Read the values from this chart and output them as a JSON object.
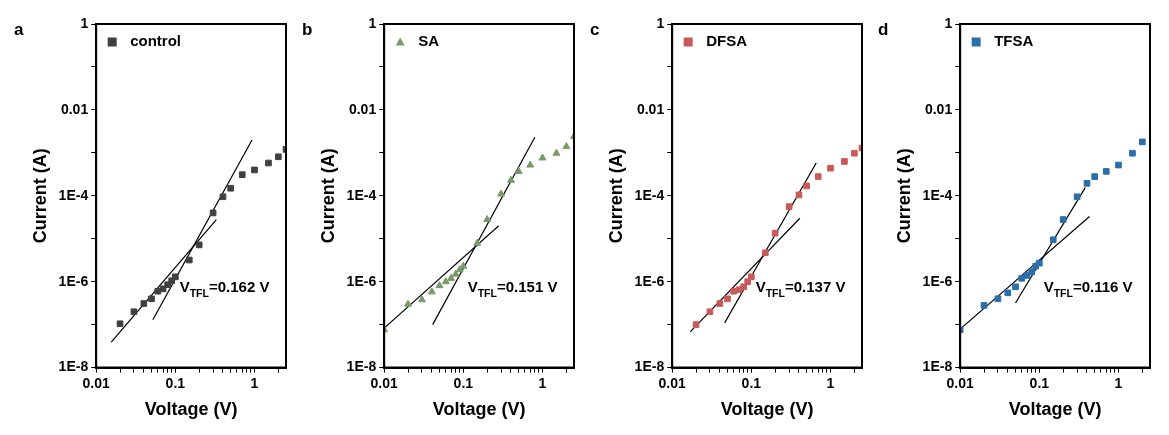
{
  "chart_data": [
    {
      "type": "scatter",
      "title": "a",
      "xlabel": "Voltage (V)",
      "ylabel": "Current (A)",
      "legend": "top left",
      "log": "xy",
      "xlim": [
        0.01,
        2.5
      ],
      "ylim": [
        1e-08,
        1
      ],
      "xticks": [
        0.01,
        {
          "value": 0.02,
          "label": null
        },
        {
          "value": 0.03,
          "label": null
        },
        {
          "value": 0.04,
          "label": null
        },
        {
          "value": 0.05,
          "label": null
        },
        {
          "value": 0.06,
          "label": null
        },
        {
          "value": 0.07,
          "label": null
        },
        {
          "value": 0.08,
          "label": null
        },
        {
          "value": 0.09,
          "label": null
        },
        0.1,
        {
          "value": 0.2,
          "label": null
        },
        {
          "value": 0.3,
          "label": null
        },
        {
          "value": 0.4,
          "label": null
        },
        {
          "value": 0.5,
          "label": null
        },
        {
          "value": 0.6,
          "label": null
        },
        {
          "value": 0.7,
          "label": null
        },
        {
          "value": 0.8,
          "label": null
        },
        {
          "value": 0.9,
          "label": null
        },
        1,
        {
          "value": 2,
          "label": null
        }
      ],
      "yticks": [
        {
          "value": 1e-08,
          "label": "1E-8"
        },
        {
          "value": 1e-07,
          "label": null
        },
        {
          "value": 1e-06,
          "label": "1E-6"
        },
        {
          "value": 1e-05,
          "label": null
        },
        {
          "value": 0.0001,
          "label": "1E-4"
        },
        {
          "value": 0.001,
          "label": null
        },
        {
          "value": 0.01,
          "label": "0.01"
        },
        {
          "value": 0.1,
          "label": null
        },
        {
          "value": 1,
          "label": "1"
        }
      ],
      "annotations": [
        "V$_{TFL}$=0.162 V"
      ],
      "series": [
        {
          "name": "control",
          "color": "#404040",
          "marker": "square",
          "x": [
            0.02,
            0.03,
            0.04,
            0.05,
            0.06,
            0.07,
            0.08,
            0.09,
            0.1,
            0.15,
            0.2,
            0.3,
            0.4,
            0.5,
            0.7,
            1,
            1.5,
            2,
            2.5
          ],
          "values": [
            1.05e-07,
            2e-07,
            3.1e-07,
            4e-07,
            6e-07,
            6.8e-07,
            8.5e-07,
            1.05e-06,
            1.3e-06,
            3.2e-06,
            7.2e-06,
            4e-05,
            9.5e-05,
            0.00015,
            0.00031,
            0.0004,
            0.00058,
            0.00081,
            0.0012
          ]
        },
        {
          "type": "line",
          "color": "#000000",
          "x": [
            0.0155,
            0.33
          ],
          "values": [
            3.9e-08,
            2.8e-05
          ]
        },
        {
          "type": "line",
          "color": "#000000",
          "x": [
            0.052,
            0.93
          ],
          "values": [
            1.3e-07,
            0.002
          ]
        }
      ]
    },
    {
      "type": "scatter",
      "title": "b",
      "xlabel": "Voltage (V)",
      "ylabel": "Current (A)",
      "legend": "top left",
      "log": "xy",
      "xlim": [
        0.01,
        2.5
      ],
      "ylim": [
        1e-08,
        1
      ],
      "xticks": [
        0.01,
        {
          "value": 0.02,
          "label": null
        },
        {
          "value": 0.03,
          "label": null
        },
        {
          "value": 0.04,
          "label": null
        },
        {
          "value": 0.05,
          "label": null
        },
        {
          "value": 0.06,
          "label": null
        },
        {
          "value": 0.07,
          "label": null
        },
        {
          "value": 0.08,
          "label": null
        },
        {
          "value": 0.09,
          "label": null
        },
        0.1,
        {
          "value": 0.2,
          "label": null
        },
        {
          "value": 0.3,
          "label": null
        },
        {
          "value": 0.4,
          "label": null
        },
        {
          "value": 0.5,
          "label": null
        },
        {
          "value": 0.6,
          "label": null
        },
        {
          "value": 0.7,
          "label": null
        },
        {
          "value": 0.8,
          "label": null
        },
        {
          "value": 0.9,
          "label": null
        },
        1,
        {
          "value": 2,
          "label": null
        }
      ],
      "yticks": [
        {
          "value": 1e-08,
          "label": "1E-8"
        },
        {
          "value": 1e-07,
          "label": null
        },
        {
          "value": 1e-06,
          "label": "1E-6"
        },
        {
          "value": 1e-05,
          "label": null
        },
        {
          "value": 0.0001,
          "label": "1E-4"
        },
        {
          "value": 0.001,
          "label": null
        },
        {
          "value": 0.01,
          "label": "0.01"
        },
        {
          "value": 0.1,
          "label": null
        },
        {
          "value": 1,
          "label": "1"
        }
      ],
      "annotations": [
        "V$_{TFL}$=0.151 V"
      ],
      "series": [
        {
          "name": "SA",
          "color": "#7a9a6a",
          "marker": "triangle",
          "x": [
            0.01,
            0.02,
            0.03,
            0.04,
            0.05,
            0.06,
            0.07,
            0.08,
            0.09,
            0.1,
            0.15,
            0.2,
            0.3,
            0.4,
            0.5,
            0.7,
            1,
            1.5,
            2,
            2.5
          ],
          "values": [
            7.6e-08,
            3e-07,
            3.8e-07,
            5.8e-07,
            8.1e-07,
            1e-06,
            1.2e-06,
            1.5e-06,
            1.9e-06,
            2.3e-06,
            7.9e-06,
            2.8e-05,
            0.00011,
            0.00023,
            0.00037,
            0.00052,
            0.00076,
            0.00098,
            0.0014,
            0.0024
          ]
        },
        {
          "type": "line",
          "color": "#000000",
          "x": [
            0.01,
            0.28
          ],
          "values": [
            8.3e-08,
            2e-05
          ]
        },
        {
          "type": "line",
          "color": "#000000",
          "x": [
            0.041,
            0.8
          ],
          "values": [
            1e-07,
            0.0023
          ]
        }
      ]
    },
    {
      "type": "scatter",
      "title": "c",
      "xlabel": "Voltage (V)",
      "ylabel": "Current (A)",
      "legend": "top left",
      "log": "xy",
      "xlim": [
        0.01,
        2.5
      ],
      "ylim": [
        1e-08,
        1
      ],
      "xticks": [
        0.01,
        {
          "value": 0.02,
          "label": null
        },
        {
          "value": 0.03,
          "label": null
        },
        {
          "value": 0.04,
          "label": null
        },
        {
          "value": 0.05,
          "label": null
        },
        {
          "value": 0.06,
          "label": null
        },
        {
          "value": 0.07,
          "label": null
        },
        {
          "value": 0.08,
          "label": null
        },
        {
          "value": 0.09,
          "label": null
        },
        0.1,
        {
          "value": 0.2,
          "label": null
        },
        {
          "value": 0.3,
          "label": null
        },
        {
          "value": 0.4,
          "label": null
        },
        {
          "value": 0.5,
          "label": null
        },
        {
          "value": 0.6,
          "label": null
        },
        {
          "value": 0.7,
          "label": null
        },
        {
          "value": 0.8,
          "label": null
        },
        {
          "value": 0.9,
          "label": null
        },
        1,
        {
          "value": 2,
          "label": null
        }
      ],
      "yticks": [
        {
          "value": 1e-08,
          "label": "1E-8"
        },
        {
          "value": 1e-07,
          "label": null
        },
        {
          "value": 1e-06,
          "label": "1E-6"
        },
        {
          "value": 1e-05,
          "label": null
        },
        {
          "value": 0.0001,
          "label": "1E-4"
        },
        {
          "value": 0.001,
          "label": null
        },
        {
          "value": 0.01,
          "label": "0.01"
        },
        {
          "value": 0.1,
          "label": null
        },
        {
          "value": 1,
          "label": "1"
        }
      ],
      "annotations": [
        "V$_{TFL}$=0.137 V"
      ],
      "series": [
        {
          "name": "DFSA",
          "color": "#c85a5a",
          "marker": "square",
          "x": [
            0.02,
            0.03,
            0.04,
            0.05,
            0.06,
            0.07,
            0.08,
            0.09,
            0.1,
            0.15,
            0.2,
            0.3,
            0.4,
            0.5,
            0.7,
            1,
            1.5,
            2,
            2.5
          ],
          "values": [
            1e-07,
            2e-07,
            3.1e-07,
            4e-07,
            6e-07,
            6.5e-07,
            7.6e-07,
            1e-06,
            1.3e-06,
            4.7e-06,
            1.35e-05,
            5.6e-05,
            0.000105,
            0.00017,
            0.00028,
            0.00044,
            0.00063,
            0.00098,
            0.0013
          ]
        },
        {
          "type": "line",
          "color": "#000000",
          "x": [
            0.017,
            0.41
          ],
          "values": [
            6.9e-08,
            3e-05
          ]
        },
        {
          "type": "line",
          "color": "#000000",
          "x": [
            0.046,
            0.66
          ],
          "values": [
            1.1e-07,
            0.00058
          ]
        }
      ]
    },
    {
      "type": "scatter",
      "title": "d",
      "xlabel": "Voltage (V)",
      "ylabel": "Current (A)",
      "legend": "top left",
      "log": "xy",
      "xlim": [
        0.01,
        2.5
      ],
      "ylim": [
        1e-08,
        1
      ],
      "xticks": [
        0.01,
        {
          "value": 0.02,
          "label": null
        },
        {
          "value": 0.03,
          "label": null
        },
        {
          "value": 0.04,
          "label": null
        },
        {
          "value": 0.05,
          "label": null
        },
        {
          "value": 0.06,
          "label": null
        },
        {
          "value": 0.07,
          "label": null
        },
        {
          "value": 0.08,
          "label": null
        },
        {
          "value": 0.09,
          "label": null
        },
        0.1,
        {
          "value": 0.2,
          "label": null
        },
        {
          "value": 0.3,
          "label": null
        },
        {
          "value": 0.4,
          "label": null
        },
        {
          "value": 0.5,
          "label": null
        },
        {
          "value": 0.6,
          "label": null
        },
        {
          "value": 0.7,
          "label": null
        },
        {
          "value": 0.8,
          "label": null
        },
        {
          "value": 0.9,
          "label": null
        },
        1,
        {
          "value": 2,
          "label": null
        }
      ],
      "yticks": [
        {
          "value": 1e-08,
          "label": "1E-8"
        },
        {
          "value": 1e-07,
          "label": null
        },
        {
          "value": 1e-06,
          "label": "1E-6"
        },
        {
          "value": 1e-05,
          "label": null
        },
        {
          "value": 0.0001,
          "label": "1E-4"
        },
        {
          "value": 0.001,
          "label": null
        },
        {
          "value": 0.01,
          "label": "0.01"
        },
        {
          "value": 0.1,
          "label": null
        },
        {
          "value": 1,
          "label": "1"
        }
      ],
      "annotations": [
        "V$_{TFL}$=0.116 V"
      ],
      "series": [
        {
          "name": "TFSA",
          "color": "#2a6fa8",
          "marker": "square",
          "x": [
            0.01,
            0.02,
            0.03,
            0.04,
            0.05,
            0.06,
            0.07,
            0.08,
            0.09,
            0.1,
            0.15,
            0.2,
            0.3,
            0.4,
            0.5,
            0.7,
            1,
            1.5,
            2
          ],
          "values": [
            7.6e-08,
            2.8e-07,
            4e-07,
            5.5e-07,
            7.6e-07,
            1.2e-06,
            1.4e-06,
            1.7e-06,
            2.3e-06,
            2.7e-06,
            9.5e-06,
            2.8e-05,
            9.5e-05,
            0.000195,
            0.00028,
            0.00037,
            0.00052,
            0.00098,
            0.0018
          ]
        },
        {
          "type": "line",
          "color": "#000000",
          "x": [
            0.01,
            0.43
          ],
          "values": [
            7.9e-08,
            3.3e-05
          ]
        },
        {
          "type": "line",
          "color": "#000000",
          "x": [
            0.05,
            0.38
          ],
          "values": [
            3.2e-07,
            0.000155
          ]
        }
      ]
    }
  ]
}
